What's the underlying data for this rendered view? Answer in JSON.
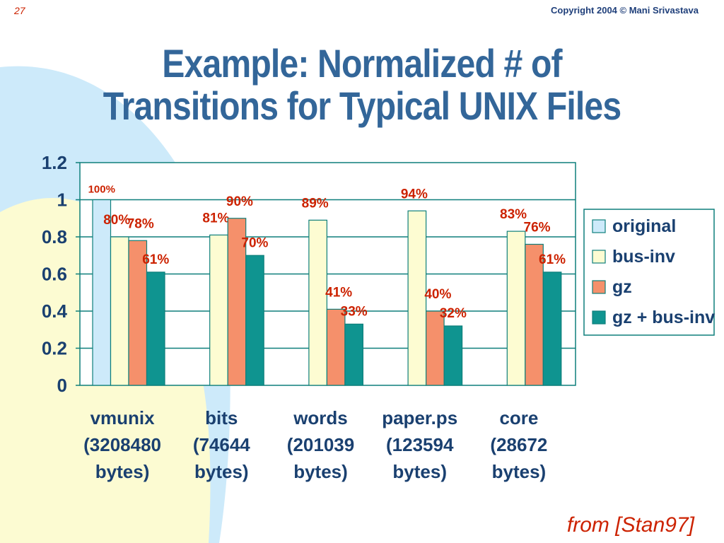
{
  "slide": {
    "number": "27",
    "copyright": "Copyright 2004 © Mani Srivastava",
    "title_lines": [
      "Example: Normalized # of",
      "Transitions for Typical UNIX Files"
    ],
    "source": "from [Stan97]"
  },
  "colors": {
    "title": "#336699",
    "accent_red": "#cc2200",
    "axis_text": "#1a4070",
    "frame": "#0e7f7b",
    "bg_blue_shape": "#cdeafa",
    "bg_yellow_shape": "#fcfbd2"
  },
  "chart_data": {
    "type": "bar",
    "categories": [
      [
        "vmunix",
        "(3208480",
        "bytes)"
      ],
      [
        "bits",
        "(74644",
        "bytes)"
      ],
      [
        "words",
        "(201039",
        "bytes)"
      ],
      [
        "paper.ps",
        "(123594",
        "bytes)"
      ],
      [
        "core",
        "(28672",
        "bytes)"
      ]
    ],
    "ylim": [
      0,
      1.2
    ],
    "yticks": [
      0,
      0.2,
      0.4,
      0.6,
      0.8,
      1,
      1.2
    ],
    "ytick_labels": [
      "0",
      "0.2",
      "0.4",
      "0.6",
      "0.8",
      "1",
      "1.2"
    ],
    "grid": true,
    "legend_position": "right",
    "series": [
      {
        "name": "original",
        "color": "#cdeafa",
        "values": [
          1.0,
          null,
          null,
          null,
          null
        ],
        "labels": [
          "100%",
          "",
          "",
          "",
          ""
        ]
      },
      {
        "name": "bus-inv",
        "color": "#fdfcd2",
        "values": [
          0.8,
          0.81,
          0.89,
          0.94,
          0.83
        ],
        "labels": [
          "80%",
          "81%",
          "89%",
          "94%",
          "83%"
        ]
      },
      {
        "name": "gz",
        "color": "#f5906b",
        "values": [
          0.78,
          0.9,
          0.41,
          0.4,
          0.76
        ],
        "labels": [
          "78%",
          "90%",
          "41%",
          "40%",
          "76%"
        ]
      },
      {
        "name": "gz + bus-inv",
        "color": "#0f9490",
        "values": [
          0.61,
          0.7,
          0.33,
          0.32,
          0.61
        ],
        "labels": [
          "61%",
          "70%",
          "33%",
          "32%",
          "61%"
        ]
      }
    ]
  }
}
